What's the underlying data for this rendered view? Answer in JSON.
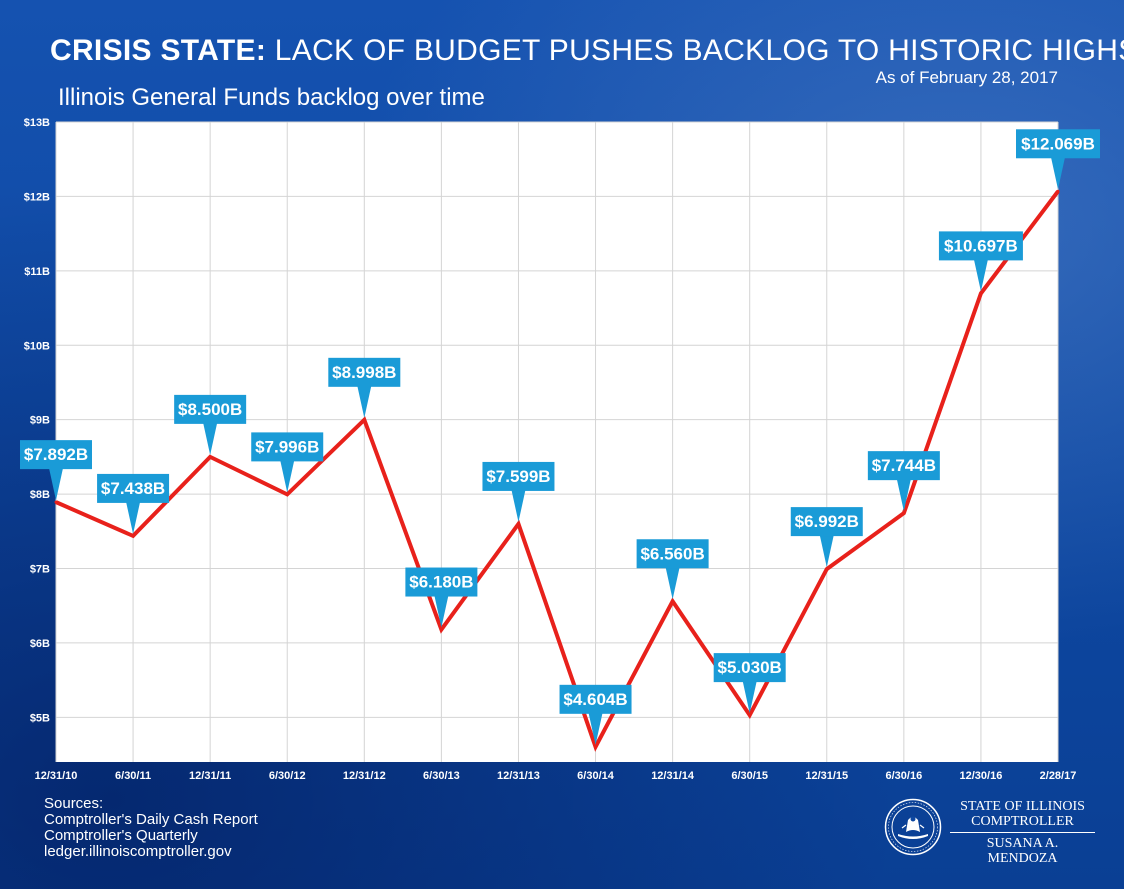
{
  "header": {
    "title_bold": "CRISIS STATE:",
    "title_rest": " LACK OF BUDGET PUSHES BACKLOG TO HISTORIC HIGHS",
    "as_of": "As of February 28, 2017",
    "subtitle": "Illinois General Funds backlog over time"
  },
  "chart_data": {
    "type": "line",
    "title": "CRISIS STATE: LACK OF BUDGET PUSHES BACKLOG TO HISTORIC HIGHS",
    "subtitle": "Illinois General Funds backlog over time",
    "categories": [
      "12/31/10",
      "6/30/11",
      "12/31/11",
      "6/30/12",
      "12/31/12",
      "6/30/13",
      "12/31/13",
      "6/30/14",
      "12/31/14",
      "6/30/15",
      "12/31/15",
      "6/30/16",
      "12/30/16",
      "2/28/17"
    ],
    "series": [
      {
        "values": [
          7.892,
          7.438,
          8.5,
          7.996,
          8.998,
          6.18,
          7.599,
          4.604,
          6.56,
          5.03,
          6.992,
          7.744,
          10.697,
          12.069
        ],
        "color": "#e8211b"
      }
    ],
    "data_labels": [
      "$7.892B",
      "$7.438B",
      "$8.500B",
      "$7.996B",
      "$8.998B",
      "$6.180B",
      "$7.599B",
      "$4.604B",
      "$6.560B",
      "$5.030B",
      "$6.992B",
      "$7.744B",
      "$10.697B",
      "$12.069B"
    ],
    "y_tick_labels": [
      "$5B",
      "$6B",
      "$7B",
      "$8B",
      "$9B",
      "$10B",
      "$11B",
      "$12B",
      "$13B"
    ],
    "y_ticks": [
      5,
      6,
      7,
      8,
      9,
      10,
      11,
      12,
      13
    ],
    "ylim": [
      4.4,
      13
    ],
    "grid": true,
    "callout_color": "#1a9bd7",
    "plot_background": "#ffffff"
  },
  "sources": {
    "heading": "Sources:",
    "lines": [
      "Comptroller's Daily Cash Report",
      "Comptroller's Quarterly",
      "ledger.illinoiscomptroller.gov"
    ]
  },
  "logo": {
    "line1": "STATE OF ILLINOIS",
    "line2": "COMPTROLLER",
    "line3": "SUSANA A. MENDOZA"
  },
  "colors": {
    "background": "#0d47a1",
    "line": "#e8211b",
    "callout": "#1a9bd7",
    "text": "#ffffff"
  }
}
